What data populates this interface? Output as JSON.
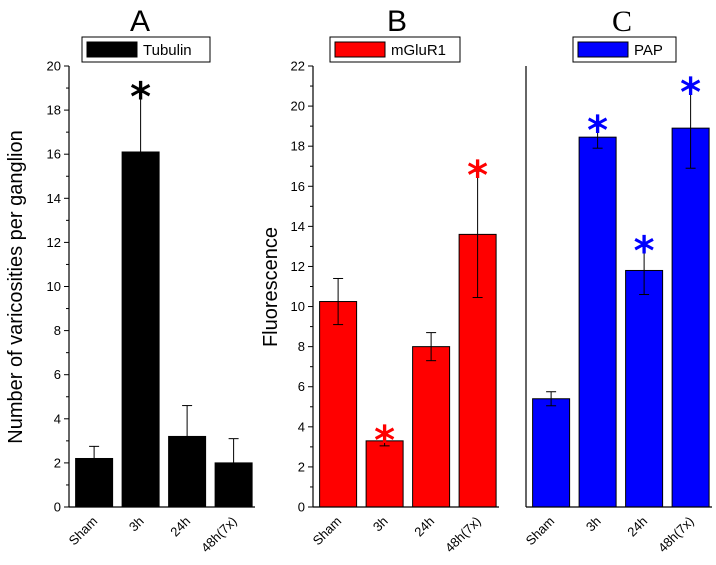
{
  "chart_data": [
    {
      "type": "bar",
      "panel_letter": "A",
      "legend": "Tubulin",
      "color": "#000000",
      "ylabel": "Number of varicosities per ganglion",
      "ylim": [
        0,
        20
      ],
      "yticks": [
        0,
        2,
        4,
        6,
        8,
        10,
        12,
        14,
        16,
        18,
        20
      ],
      "categories": [
        "Sham",
        "3h",
        "24h",
        "48h(7x)"
      ],
      "values": [
        2.2,
        16.1,
        3.2,
        2.0
      ],
      "errors": [
        0.55,
        2.7,
        1.4,
        1.1
      ],
      "significant": [
        false,
        true,
        false,
        false
      ],
      "star_symbol": "*"
    },
    {
      "type": "bar",
      "panel_letter": "B",
      "legend": "mGluR1",
      "color": "#ff0000",
      "ylabel": "Fluorescence",
      "ylim": [
        0,
        22
      ],
      "yticks": [
        0,
        2,
        4,
        6,
        8,
        10,
        12,
        14,
        16,
        18,
        20,
        22
      ],
      "categories": [
        "Sham",
        "3h",
        "24h",
        "48h(7x)"
      ],
      "values": [
        10.25,
        3.3,
        8.0,
        13.6
      ],
      "errors": [
        1.15,
        0.25,
        0.7,
        3.15
      ],
      "significant": [
        false,
        true,
        false,
        true
      ],
      "star_symbol": "*"
    },
    {
      "type": "bar",
      "panel_letter": "C",
      "legend": "PAP",
      "color": "#0000ff",
      "ylabel": "",
      "ylim": [
        0,
        22
      ],
      "yticks": [],
      "categories": [
        "Sham",
        "3h",
        "24h",
        "48h(7x)"
      ],
      "values": [
        5.4,
        18.45,
        11.8,
        18.9
      ],
      "errors": [
        0.35,
        0.55,
        1.2,
        2.0
      ],
      "significant": [
        false,
        true,
        true,
        true
      ],
      "star_symbol": "*"
    }
  ]
}
